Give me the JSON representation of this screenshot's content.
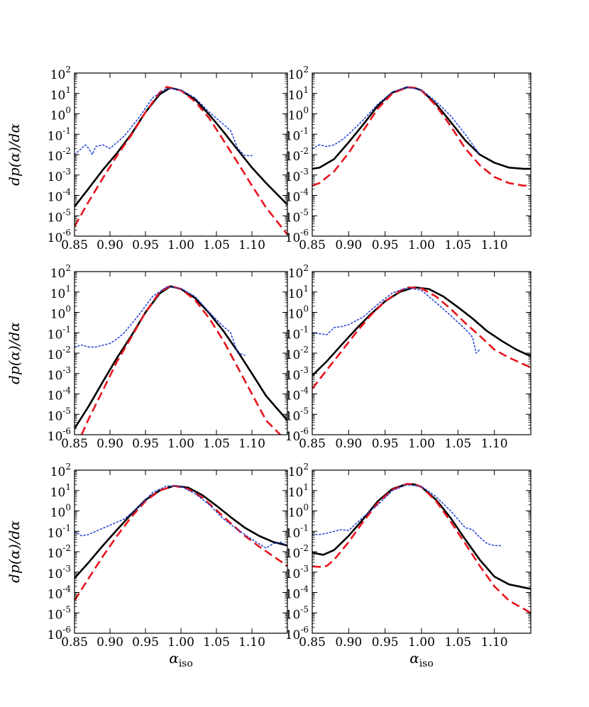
{
  "chart_data": [
    {
      "type": "line",
      "yscale": "log",
      "xlim": [
        0.85,
        1.15
      ],
      "ylim": [
        1e-06,
        100
      ],
      "xticks": [
        "0.85",
        "0.90",
        "0.95",
        "1.00",
        "1.05",
        "1.10"
      ],
      "yticks": [
        "10",
        "10",
        "10",
        "10",
        "10",
        "10",
        "10",
        "10",
        "10"
      ],
      "ytick_exponents": [
        "-6",
        "-5",
        "-4",
        "-3",
        "-2",
        "-1",
        "0",
        "1",
        "2"
      ],
      "xlabel": "",
      "ylabel": "dp(α)/dα",
      "series": [
        {
          "style": "solid",
          "color": "#000000",
          "x": [
            0.85,
            0.87,
            0.89,
            0.91,
            0.93,
            0.95,
            0.97,
            0.985,
            1.0,
            1.02,
            1.04,
            1.06,
            1.08,
            1.1,
            1.12,
            1.15
          ],
          "y": [
            2.8e-05,
            0.00022,
            0.0018,
            0.012,
            0.1,
            1.2,
            9,
            19,
            14,
            5,
            0.9,
            0.13,
            0.017,
            0.0023,
            0.0004,
            3.5e-05
          ]
        },
        {
          "style": "dashed",
          "color": "#e8141c",
          "x": [
            0.85,
            0.87,
            0.89,
            0.91,
            0.93,
            0.95,
            0.97,
            0.98,
            1.0,
            1.02,
            1.04,
            1.06,
            1.08,
            1.1,
            1.12,
            1.15
          ],
          "y": [
            3e-06,
            5e-05,
            0.0007,
            0.009,
            0.09,
            1.2,
            11,
            21,
            14,
            4,
            0.6,
            0.05,
            0.004,
            0.0003,
            2.5e-05,
            1.2e-06
          ]
        },
        {
          "style": "dotted",
          "color": "#1f3fd6",
          "x": [
            0.85,
            0.86,
            0.865,
            0.87,
            0.875,
            0.88,
            0.89,
            0.9,
            0.91,
            0.92,
            0.94,
            0.96,
            0.98,
            1.0,
            1.02,
            1.04,
            1.06,
            1.07,
            1.08,
            1.09,
            1.1
          ],
          "y": [
            0.01,
            0.02,
            0.03,
            0.02,
            0.01,
            0.025,
            0.03,
            0.02,
            0.04,
            0.08,
            0.6,
            6,
            18,
            15,
            6,
            1.2,
            0.3,
            0.15,
            0.02,
            0.009,
            0.009
          ]
        }
      ]
    },
    {
      "type": "line",
      "yscale": "log",
      "xlim": [
        0.85,
        1.15
      ],
      "ylim": [
        1e-06,
        100
      ],
      "xticks": [
        "0.85",
        "0.90",
        "0.95",
        "1.00",
        "1.05",
        "1.10"
      ],
      "yticks": [
        "10",
        "10",
        "10",
        "10",
        "10",
        "10",
        "10",
        "10",
        "10"
      ],
      "ytick_exponents": [
        "-6",
        "-5",
        "-4",
        "-3",
        "-2",
        "-1",
        "0",
        "1",
        "2"
      ],
      "xlabel": "",
      "ylabel": "",
      "series": [
        {
          "style": "solid",
          "color": "#000000",
          "x": [
            0.85,
            0.86,
            0.88,
            0.9,
            0.92,
            0.94,
            0.96,
            0.98,
            0.99,
            1.0,
            1.02,
            1.04,
            1.06,
            1.08,
            1.1,
            1.12,
            1.14,
            1.15
          ],
          "y": [
            0.002,
            0.0023,
            0.006,
            0.04,
            0.3,
            2.5,
            11,
            20,
            19,
            14,
            3,
            0.4,
            0.05,
            0.01,
            0.004,
            0.0023,
            0.002,
            0.002
          ]
        },
        {
          "style": "dashed",
          "color": "#e8141c",
          "x": [
            0.85,
            0.86,
            0.88,
            0.9,
            0.92,
            0.94,
            0.96,
            0.98,
            0.99,
            1.0,
            1.02,
            1.04,
            1.06,
            1.08,
            1.1,
            1.12,
            1.14,
            1.15
          ],
          "y": [
            0.0003,
            0.0004,
            0.0015,
            0.012,
            0.15,
            1.8,
            10,
            20,
            19,
            14,
            2.5,
            0.25,
            0.02,
            0.003,
            0.0008,
            0.0004,
            0.0003,
            0.0003
          ]
        },
        {
          "style": "dotted",
          "color": "#1f3fd6",
          "x": [
            0.85,
            0.86,
            0.87,
            0.88,
            0.89,
            0.9,
            0.92,
            0.94,
            0.96,
            0.98,
            1.0,
            1.02,
            1.04,
            1.06,
            1.08
          ],
          "y": [
            0.02,
            0.03,
            0.025,
            0.03,
            0.05,
            0.1,
            0.5,
            3,
            12,
            20,
            15,
            4,
            0.8,
            0.1,
            0.01
          ]
        }
      ]
    },
    {
      "type": "line",
      "yscale": "log",
      "xlim": [
        0.85,
        1.15
      ],
      "ylim": [
        1e-06,
        100
      ],
      "xticks": [
        "0.85",
        "0.90",
        "0.95",
        "1.00",
        "1.05",
        "1.10"
      ],
      "yticks": [
        "10",
        "10",
        "10",
        "10",
        "10",
        "10",
        "10",
        "10",
        "10"
      ],
      "ytick_exponents": [
        "-6",
        "-5",
        "-4",
        "-3",
        "-2",
        "-1",
        "0",
        "1",
        "2"
      ],
      "xlabel": "",
      "ylabel": "dp(α)/dα",
      "series": [
        {
          "style": "solid",
          "color": "#000000",
          "x": [
            0.85,
            0.87,
            0.89,
            0.91,
            0.93,
            0.95,
            0.97,
            0.985,
            1.0,
            1.02,
            1.04,
            1.06,
            1.08,
            1.1,
            1.12,
            1.15
          ],
          "y": [
            2e-06,
            2.5e-05,
            0.0004,
            0.006,
            0.07,
            1,
            8.5,
            19,
            14,
            5,
            0.9,
            0.12,
            0.012,
            0.001,
            8e-05,
            5e-06
          ]
        },
        {
          "style": "dashed",
          "color": "#e8141c",
          "x": [
            0.86,
            0.87,
            0.89,
            0.91,
            0.93,
            0.95,
            0.97,
            0.985,
            1.0,
            1.02,
            1.04,
            1.06,
            1.08,
            1.1,
            1.12,
            1.14
          ],
          "y": [
            1e-06,
            6e-06,
            0.00015,
            0.004,
            0.06,
            1,
            10,
            20,
            14,
            4,
            0.5,
            0.04,
            0.002,
            0.0001,
            5e-06,
            1e-06
          ]
        },
        {
          "style": "dotted",
          "color": "#1f3fd6",
          "x": [
            0.85,
            0.86,
            0.87,
            0.88,
            0.9,
            0.91,
            0.92,
            0.94,
            0.96,
            0.98,
            1.0,
            1.02,
            1.04,
            1.06,
            1.07,
            1.08,
            1.09
          ],
          "y": [
            0.02,
            0.025,
            0.02,
            0.02,
            0.03,
            0.05,
            0.1,
            0.7,
            6,
            18,
            15,
            6,
            1,
            0.2,
            0.1,
            0.01,
            0.008
          ]
        }
      ]
    },
    {
      "type": "line",
      "yscale": "log",
      "xlim": [
        0.85,
        1.15
      ],
      "ylim": [
        1e-06,
        100
      ],
      "xticks": [
        "0.85",
        "0.90",
        "0.95",
        "1.00",
        "1.05",
        "1.10"
      ],
      "yticks": [
        "10",
        "10",
        "10",
        "10",
        "10",
        "10",
        "10",
        "10",
        "10"
      ],
      "ytick_exponents": [
        "-6",
        "-5",
        "-4",
        "-3",
        "-2",
        "-1",
        "0",
        "1",
        "2"
      ],
      "xlabel": "",
      "ylabel": "",
      "series": [
        {
          "style": "solid",
          "color": "#000000",
          "x": [
            0.85,
            0.87,
            0.89,
            0.91,
            0.93,
            0.95,
            0.97,
            0.99,
            1.01,
            1.03,
            1.05,
            1.07,
            1.09,
            1.11,
            1.13,
            1.15
          ],
          "y": [
            0.0008,
            0.004,
            0.025,
            0.15,
            0.8,
            3.5,
            10,
            17,
            14,
            6,
            1.8,
            0.5,
            0.12,
            0.04,
            0.015,
            0.007
          ]
        },
        {
          "style": "dashed",
          "color": "#e8141c",
          "x": [
            0.85,
            0.87,
            0.89,
            0.91,
            0.93,
            0.95,
            0.97,
            0.98,
            1.0,
            1.02,
            1.04,
            1.06,
            1.08,
            1.1,
            1.12,
            1.15
          ],
          "y": [
            0.00018,
            0.0015,
            0.012,
            0.1,
            0.7,
            3.5,
            11,
            17,
            15,
            6,
            1.5,
            0.3,
            0.07,
            0.015,
            0.006,
            0.002
          ]
        },
        {
          "style": "dotted",
          "color": "#1f3fd6",
          "x": [
            0.85,
            0.86,
            0.87,
            0.88,
            0.89,
            0.9,
            0.92,
            0.94,
            0.96,
            0.98,
            1.0,
            1.02,
            1.04,
            1.06,
            1.07,
            1.075,
            1.08
          ],
          "y": [
            0.1,
            0.09,
            0.08,
            0.18,
            0.2,
            0.25,
            0.6,
            2.5,
            9,
            16,
            12,
            3,
            0.7,
            0.15,
            0.06,
            0.01,
            0.015
          ]
        }
      ]
    },
    {
      "type": "line",
      "yscale": "log",
      "xlim": [
        0.85,
        1.15
      ],
      "ylim": [
        1e-06,
        100
      ],
      "xticks": [
        "0.85",
        "0.90",
        "0.95",
        "1.00",
        "1.05",
        "1.10"
      ],
      "yticks": [
        "10",
        "10",
        "10",
        "10",
        "10",
        "10",
        "10",
        "10",
        "10"
      ],
      "ytick_exponents": [
        "-6",
        "-5",
        "-4",
        "-3",
        "-2",
        "-1",
        "0",
        "1",
        "2"
      ],
      "xlabel": "α_iso",
      "ylabel": "dp(α)/dα",
      "series": [
        {
          "style": "solid",
          "color": "#000000",
          "x": [
            0.85,
            0.87,
            0.89,
            0.91,
            0.93,
            0.95,
            0.97,
            0.99,
            1.01,
            1.03,
            1.05,
            1.07,
            1.09,
            1.11,
            1.13,
            1.15
          ],
          "y": [
            0.0005,
            0.003,
            0.02,
            0.12,
            0.7,
            3.5,
            10,
            17,
            14,
            6,
            1.8,
            0.5,
            0.15,
            0.06,
            0.03,
            0.02
          ]
        },
        {
          "style": "dashed",
          "color": "#e8141c",
          "x": [
            0.85,
            0.87,
            0.89,
            0.91,
            0.93,
            0.95,
            0.97,
            0.99,
            1.01,
            1.03,
            1.05,
            1.07,
            1.09,
            1.11,
            1.13,
            1.15
          ],
          "y": [
            4e-05,
            0.0005,
            0.006,
            0.06,
            0.5,
            3,
            10,
            17,
            12,
            4.5,
            1.1,
            0.25,
            0.06,
            0.018,
            0.006,
            0.002
          ]
        },
        {
          "style": "dotted",
          "color": "#1f3fd6",
          "x": [
            0.85,
            0.86,
            0.87,
            0.88,
            0.9,
            0.92,
            0.94,
            0.96,
            0.98,
            1.0,
            1.02,
            1.04,
            1.06,
            1.08,
            1.1,
            1.12,
            1.13,
            1.14,
            1.15
          ],
          "y": [
            0.1,
            0.06,
            0.07,
            0.1,
            0.2,
            0.4,
            1.5,
            8,
            17,
            16,
            7,
            2,
            0.4,
            0.12,
            0.04,
            0.015,
            0.025,
            0.03,
            0.02
          ]
        }
      ]
    },
    {
      "type": "line",
      "yscale": "log",
      "xlim": [
        0.85,
        1.15
      ],
      "ylim": [
        1e-06,
        100
      ],
      "xticks": [
        "0.85",
        "0.90",
        "0.95",
        "1.00",
        "1.05",
        "1.10"
      ],
      "yticks": [
        "10",
        "10",
        "10",
        "10",
        "10",
        "10",
        "10",
        "10",
        "10"
      ],
      "ytick_exponents": [
        "-6",
        "-5",
        "-4",
        "-3",
        "-2",
        "-1",
        "0",
        "1",
        "2"
      ],
      "xlabel": "α_iso",
      "ylabel": "",
      "series": [
        {
          "style": "solid",
          "color": "#000000",
          "x": [
            0.85,
            0.865,
            0.88,
            0.9,
            0.92,
            0.94,
            0.96,
            0.98,
            0.99,
            1.0,
            1.02,
            1.04,
            1.06,
            1.08,
            1.1,
            1.12,
            1.15
          ],
          "y": [
            0.009,
            0.007,
            0.012,
            0.06,
            0.4,
            3,
            12,
            21,
            20,
            15,
            3.5,
            0.45,
            0.04,
            0.004,
            0.0006,
            0.00025,
            0.00015
          ]
        },
        {
          "style": "dashed",
          "color": "#e8141c",
          "x": [
            0.85,
            0.86,
            0.87,
            0.88,
            0.9,
            0.92,
            0.94,
            0.96,
            0.98,
            0.99,
            1.0,
            1.02,
            1.04,
            1.06,
            1.08,
            1.1,
            1.12,
            1.15
          ],
          "y": [
            0.0019,
            0.0018,
            0.002,
            0.004,
            0.03,
            0.3,
            2.5,
            11,
            21,
            21,
            15,
            3,
            0.3,
            0.025,
            0.002,
            0.0002,
            4e-05,
            1e-05
          ]
        },
        {
          "style": "dotted",
          "color": "#1f3fd6",
          "x": [
            0.85,
            0.86,
            0.87,
            0.88,
            0.89,
            0.9,
            0.92,
            0.94,
            0.96,
            0.98,
            1.0,
            1.02,
            1.04,
            1.06,
            1.07,
            1.08,
            1.09,
            1.1,
            1.11
          ],
          "y": [
            0.07,
            0.07,
            0.08,
            0.1,
            0.12,
            0.11,
            0.5,
            2,
            10,
            19,
            16,
            5,
            1,
            0.15,
            0.12,
            0.05,
            0.025,
            0.02,
            0.02
          ]
        }
      ]
    }
  ]
}
